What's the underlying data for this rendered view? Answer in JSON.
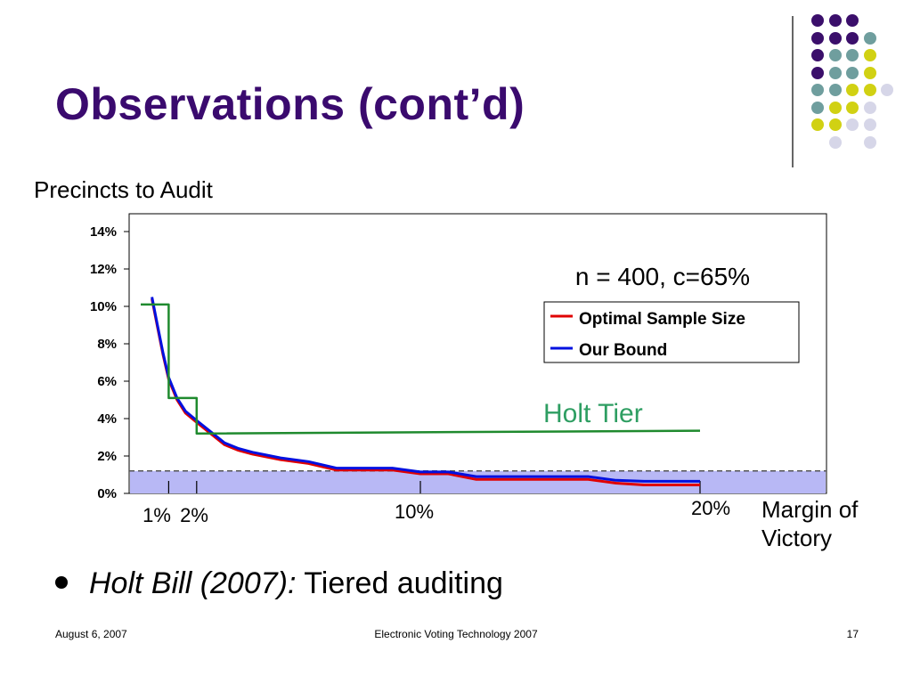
{
  "slide": {
    "title": "Observations (cont’d)",
    "footer_date": "August 6, 2007",
    "footer_center": "Electronic Voting Technology 2007",
    "footer_page": "17",
    "bullet_italic": "Holt Bill (2007):",
    "bullet_text": "Tiered auditing"
  },
  "colors": {
    "title": "#3a0a6e",
    "purple": "#3b0f6b",
    "teal": "#6f9e9e",
    "yellow": "#d1d113",
    "lavender": "#d6d6e8",
    "optimal": "#e00000",
    "bound": "#0010e0",
    "holt": "#1f8a2e",
    "holt_label": "#2e9e62",
    "band": "#b8b8f5"
  },
  "chart_data": {
    "type": "line",
    "ylabel": "Precincts to Audit",
    "xlabel": "Margin of Victory",
    "yticks": [
      "0%",
      "2%",
      "4%",
      "6%",
      "8%",
      "10%",
      "12%",
      "14%"
    ],
    "ylim": [
      0,
      14.5
    ],
    "xlim": [
      0,
      22
    ],
    "xticks": [
      "1%",
      "2%",
      "10%",
      "20%"
    ],
    "annotation": "n = 400, c=65%",
    "tier_label": "Holt Tier",
    "legend": [
      "Optimal Sample Size",
      "Our Bound"
    ],
    "series": [
      {
        "name": "Optimal Sample Size",
        "x": [
          0.4,
          0.6,
          0.8,
          1.0,
          1.3,
          1.6,
          2.0,
          2.5,
          3.0,
          3.5,
          4,
          5,
          6,
          7,
          8,
          9,
          10,
          11,
          12,
          13,
          14,
          15,
          16,
          17,
          18,
          19,
          20
        ],
        "y": [
          10.4,
          8.9,
          7.4,
          6.1,
          5.0,
          4.3,
          3.8,
          3.2,
          2.6,
          2.3,
          2.1,
          1.8,
          1.6,
          1.25,
          1.25,
          1.25,
          1.05,
          1.05,
          0.75,
          0.75,
          0.75,
          0.75,
          0.75,
          0.55,
          0.45,
          0.45,
          0.45
        ]
      },
      {
        "name": "Our Bound",
        "x": [
          0.4,
          0.6,
          0.8,
          1.0,
          1.3,
          1.6,
          2.0,
          2.5,
          3.0,
          3.5,
          4,
          5,
          6,
          7,
          8,
          9,
          10,
          11,
          12,
          13,
          14,
          15,
          16,
          17,
          18,
          19,
          20
        ],
        "y": [
          10.5,
          9.0,
          7.5,
          6.2,
          5.1,
          4.4,
          3.9,
          3.3,
          2.7,
          2.4,
          2.2,
          1.9,
          1.7,
          1.35,
          1.35,
          1.35,
          1.15,
          1.15,
          0.9,
          0.9,
          0.9,
          0.9,
          0.9,
          0.7,
          0.65,
          0.65,
          0.65
        ]
      },
      {
        "name": "Holt Tier",
        "x": [
          0,
          1,
          1,
          2,
          2,
          20
        ],
        "y": [
          10.1,
          10.1,
          5.1,
          5.1,
          3.2,
          3.35
        ]
      }
    ],
    "threshold_y": 1.2
  }
}
